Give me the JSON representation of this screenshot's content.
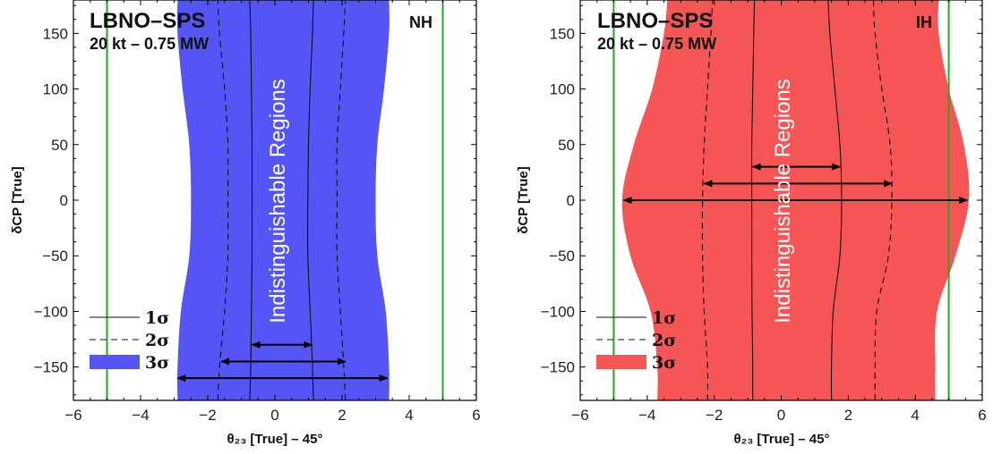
{
  "chart_data": [
    {
      "type": "area",
      "title": "LBNO–SPS",
      "subtitle": "20 kt – 0.75 MW",
      "hierarchy": "NH",
      "xlabel": "θ₂₃ [True]  –  45°",
      "ylabel": "δCP [True]",
      "xlim": [
        -6,
        6
      ],
      "ylim": [
        -180,
        180
      ],
      "xticks": [
        "−6",
        "−4",
        "−2",
        "0",
        "2",
        "4",
        "6"
      ],
      "yticks": [
        "−150",
        "−100",
        "−50",
        "0",
        "50",
        "100",
        "150"
      ],
      "region_label": "Indistinguishable Regions",
      "fill_color": "#5555f5",
      "green_lines_x": [
        -5,
        5
      ],
      "legend": [
        {
          "label": "1σ",
          "style": "solid"
        },
        {
          "label": "2σ",
          "style": "dashed"
        },
        {
          "label": "3σ",
          "style": "fill"
        }
      ],
      "contour_3sigma": {
        "y": [
          -180,
          -150,
          -100,
          -50,
          0,
          50,
          100,
          150,
          180
        ],
        "left": [
          -2.9,
          -2.9,
          -2.8,
          -2.55,
          -2.5,
          -2.55,
          -2.75,
          -2.9,
          -2.9
        ],
        "right": [
          3.4,
          3.4,
          3.3,
          3.05,
          3.0,
          3.05,
          3.25,
          3.4,
          3.4
        ]
      },
      "contour_2sigma": {
        "y": [
          -180,
          -150,
          -100,
          -50,
          0,
          50,
          100,
          150,
          180
        ],
        "left": [
          -1.7,
          -1.65,
          -1.5,
          -1.4,
          -1.4,
          -1.4,
          -1.5,
          -1.65,
          -1.7
        ],
        "right": [
          2.1,
          2.05,
          1.95,
          1.85,
          1.85,
          1.85,
          1.95,
          2.05,
          2.1
        ]
      },
      "contour_1sigma": {
        "y": [
          -180,
          -150,
          -100,
          -50,
          0,
          50,
          100,
          150,
          180
        ],
        "left": [
          -0.75,
          -0.72,
          -0.7,
          -0.68,
          -0.68,
          -0.68,
          -0.7,
          -0.72,
          -0.75
        ],
        "right": [
          1.15,
          1.12,
          1.05,
          0.98,
          0.98,
          1.0,
          1.05,
          1.12,
          1.15
        ]
      },
      "arrows": [
        {
          "y": -130,
          "x1": -0.68,
          "x2": 1.1
        },
        {
          "y": -145,
          "x1": -1.6,
          "x2": 2.1
        },
        {
          "y": -160,
          "x1": -2.9,
          "x2": 3.35
        }
      ]
    },
    {
      "type": "area",
      "title": "LBNO–SPS",
      "subtitle": "20 kt – 0.75 MW",
      "hierarchy": "IH",
      "xlabel": "θ₂₃ [True]  –  45°",
      "ylabel": "δCP [True]",
      "xlim": [
        -6,
        6
      ],
      "ylim": [
        -180,
        180
      ],
      "xticks": [
        "−6",
        "−4",
        "−2",
        "0",
        "2",
        "4",
        "6"
      ],
      "yticks": [
        "−150",
        "−100",
        "−50",
        "0",
        "50",
        "100",
        "150"
      ],
      "region_label": "Indistinguishable Regions",
      "fill_color": "#f55555",
      "green_lines_x": [
        -5,
        5
      ],
      "legend": [
        {
          "label": "1σ",
          "style": "solid"
        },
        {
          "label": "2σ",
          "style": "dashed"
        },
        {
          "label": "3σ",
          "style": "fill"
        }
      ],
      "contour_3sigma": {
        "y": [
          -180,
          -150,
          -100,
          -50,
          0,
          50,
          100,
          150,
          180
        ],
        "left": [
          -3.7,
          -3.7,
          -3.9,
          -4.5,
          -4.75,
          -4.4,
          -3.85,
          -3.5,
          -3.4
        ],
        "right": [
          4.6,
          4.6,
          4.65,
          5.2,
          5.6,
          5.45,
          5.0,
          4.7,
          4.7
        ]
      },
      "contour_2sigma": {
        "y": [
          -180,
          -150,
          -100,
          -50,
          0,
          50,
          100,
          150,
          180
        ],
        "left": [
          -2.2,
          -2.2,
          -2.3,
          -2.35,
          -2.35,
          -2.3,
          -2.2,
          -2.1,
          -2.05
        ],
        "right": [
          2.8,
          2.8,
          2.85,
          3.2,
          3.3,
          3.25,
          3.0,
          2.8,
          2.75
        ]
      },
      "contour_1sigma": {
        "y": [
          -180,
          -150,
          -100,
          -50,
          0,
          50,
          100,
          150,
          180
        ],
        "left": [
          -0.85,
          -0.85,
          -0.87,
          -0.88,
          -0.88,
          -0.88,
          -0.85,
          -0.82,
          -0.8
        ],
        "right": [
          1.5,
          1.5,
          1.55,
          1.75,
          1.8,
          1.75,
          1.6,
          1.45,
          1.4
        ]
      },
      "arrows": [
        {
          "y": 30,
          "x1": -0.85,
          "x2": 1.75
        },
        {
          "y": 15,
          "x1": -2.3,
          "x2": 3.3
        },
        {
          "y": 0,
          "x1": -4.7,
          "x2": 5.55
        }
      ]
    }
  ]
}
